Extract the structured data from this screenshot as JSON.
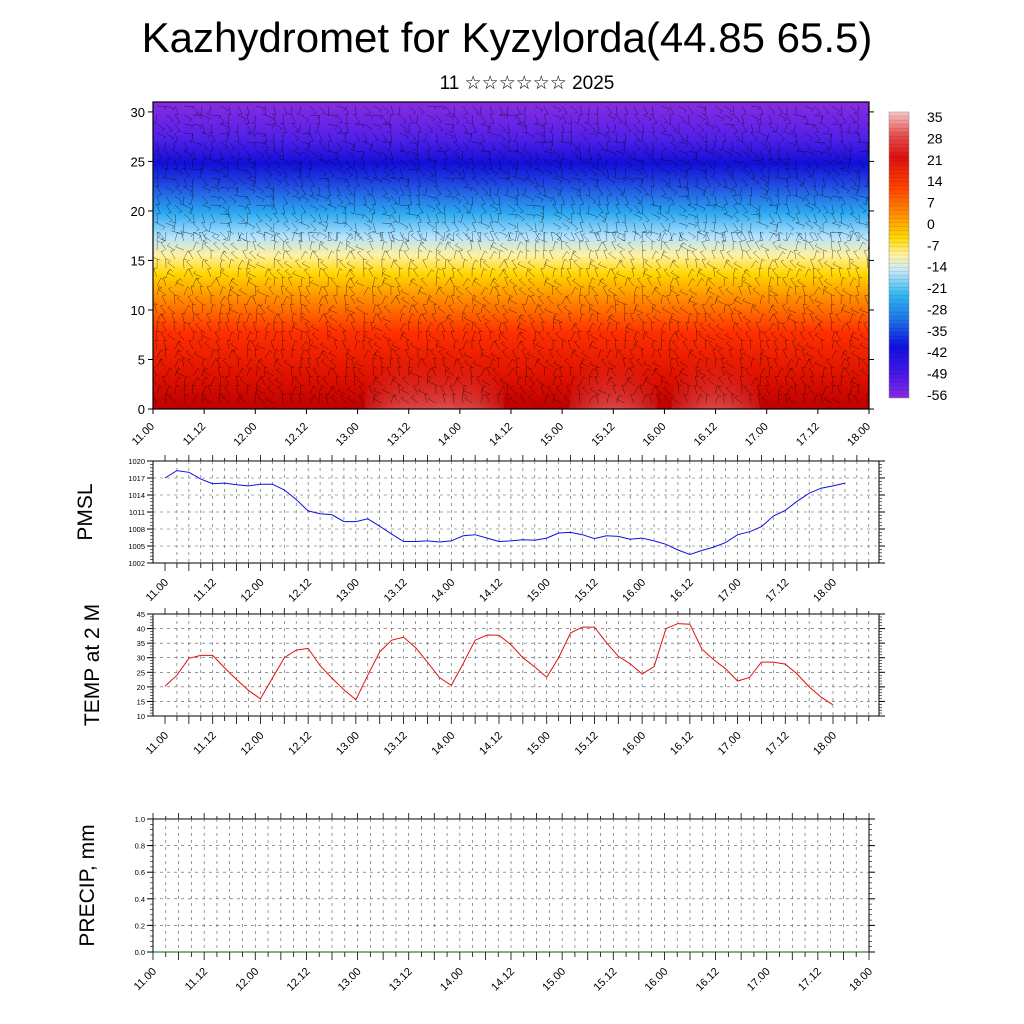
{
  "title": "Kazhydromet for Kyzylorda(44.85 65.5)",
  "subtitle": "11 ☆☆☆☆☆☆ 2025",
  "colors": {
    "pressure_line": "#1010e0",
    "temperature_line": "#e01010",
    "precip_line": "#006400",
    "grid": "#555555",
    "background": "#ffffff"
  },
  "chart_data": [
    {
      "type": "heatmap",
      "name": "vertical-profile",
      "description_axes": "time vs height with wind barbs",
      "xlabel": "",
      "ylabel": "",
      "x_tick_labels": [
        "11.00",
        "11.12",
        "12.00",
        "12.12",
        "13.00",
        "13.12",
        "14.00",
        "14.12",
        "15.00",
        "15.12",
        "16.00",
        "16.12",
        "17.00",
        "17.12",
        "18.00"
      ],
      "y_ticks": [
        0,
        5,
        10,
        15,
        20,
        25,
        30
      ],
      "ylim": [
        0,
        31
      ],
      "colorbar": {
        "labels": [
          "35",
          "28",
          "21",
          "14",
          "7",
          "0",
          "-7",
          "-14",
          "-21",
          "-28",
          "-35",
          "-42",
          "-49",
          "-56"
        ],
        "range": [
          -60,
          38
        ]
      },
      "hot_spots_x": [
        "13.12",
        "14.00",
        "15.12",
        "16.12"
      ],
      "overlay": "wind-barbs"
    },
    {
      "type": "line",
      "name": "pressure",
      "ylabel": "PMSL",
      "ylim": [
        1002,
        1020
      ],
      "y_ticks": [
        1002,
        1005,
        1008,
        1011,
        1014,
        1017,
        1020
      ],
      "x_tick_labels": [
        "11.00",
        "11.12",
        "12.00",
        "12.12",
        "13.00",
        "13.12",
        "14.00",
        "14.12",
        "15.00",
        "15.12",
        "16.00",
        "16.12",
        "17.00",
        "17.12",
        "18.00"
      ],
      "grid": true,
      "series": [
        {
          "values": [
            1017.0,
            1018.3,
            1018.0,
            1016.8,
            1016.0,
            1016.1,
            1015.8,
            1015.6,
            1015.9,
            1015.9,
            1014.9,
            1013.2,
            1011.2,
            1010.7,
            1010.5,
            1009.3,
            1009.3,
            1009.8,
            1008.5,
            1007.1,
            1005.8,
            1005.8,
            1005.9,
            1005.7,
            1005.9,
            1006.8,
            1007.0,
            1006.4,
            1005.8,
            1005.9,
            1006.1,
            1006.0,
            1006.4,
            1007.3,
            1007.4,
            1007.0,
            1006.3,
            1006.8,
            1006.7,
            1006.2,
            1006.4,
            1005.9,
            1005.3,
            1004.3,
            1003.5,
            1004.2,
            1004.8,
            1005.6,
            1007.0,
            1007.5,
            1008.4,
            1010.3,
            1011.3,
            1012.9,
            1014.3,
            1015.2,
            1015.6,
            1016.1
          ]
        }
      ]
    },
    {
      "type": "line",
      "name": "temperature",
      "ylabel": "TEMP at 2 M",
      "ylim": [
        10,
        45
      ],
      "y_ticks": [
        10,
        15,
        20,
        25,
        30,
        35,
        40,
        45
      ],
      "x_tick_labels": [
        "11.00",
        "11.12",
        "12.00",
        "12.12",
        "13.00",
        "13.12",
        "14.00",
        "14.12",
        "15.00",
        "15.12",
        "16.00",
        "16.12",
        "17.00",
        "17.12",
        "18.00"
      ],
      "grid": true,
      "series": [
        {
          "values": [
            20.2,
            24.0,
            29.8,
            30.8,
            30.8,
            26.5,
            22.5,
            18.8,
            15.9,
            23.0,
            30.0,
            32.6,
            33.2,
            27.3,
            23.0,
            19.0,
            15.6,
            24.0,
            32.0,
            36.0,
            37.0,
            33.5,
            28.5,
            23.2,
            20.5,
            28.0,
            36.0,
            37.8,
            37.7,
            34.5,
            30.0,
            26.8,
            23.3,
            30.0,
            38.5,
            40.5,
            40.5,
            35.2,
            30.5,
            27.9,
            24.4,
            27.0,
            40.0,
            41.7,
            41.5,
            33.0,
            29.3,
            26.2,
            22.0,
            23.2,
            28.5,
            28.5,
            27.8,
            24.4,
            20.0,
            16.5,
            13.8
          ]
        }
      ]
    },
    {
      "type": "line",
      "name": "precipitation",
      "ylabel": "PRECIP, mm",
      "ylim": [
        0,
        1.0
      ],
      "y_ticks": [
        0.0,
        0.2,
        0.4,
        0.6,
        0.8,
        1.0
      ],
      "y_tick_labels": [
        "0.0",
        "0.2",
        "0.4",
        "0.6",
        "0.8",
        "1.0"
      ],
      "x_tick_labels": [
        "11.00",
        "11.12",
        "12.00",
        "12.12",
        "13.00",
        "13.12",
        "14.00",
        "14.12",
        "15.00",
        "15.12",
        "16.00",
        "16.12",
        "17.00",
        "17.12",
        "18.00"
      ],
      "grid": true,
      "series": [
        {
          "values": [
            0,
            0,
            0,
            0,
            0,
            0,
            0,
            0,
            0,
            0,
            0,
            0,
            0,
            0,
            0
          ]
        }
      ]
    }
  ]
}
